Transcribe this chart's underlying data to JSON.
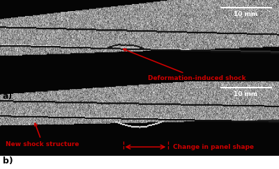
{
  "figsize": [
    4.0,
    2.43
  ],
  "dpi": 100,
  "bg_color": "#ffffff",
  "panel_a": {
    "label": "a)",
    "annotation_text": "Deformation-induced shock",
    "scale_bar_text": "10 mm"
  },
  "panel_b": {
    "label": "b)",
    "annotation1_text": "New shock structure",
    "annotation2_text": "Change in panel shape",
    "scale_bar_text": "10 mm"
  },
  "annotation_color": "#cc0000",
  "annotation_fontsize": 6.5,
  "label_fontsize": 9,
  "scale_fontsize": 6.5
}
